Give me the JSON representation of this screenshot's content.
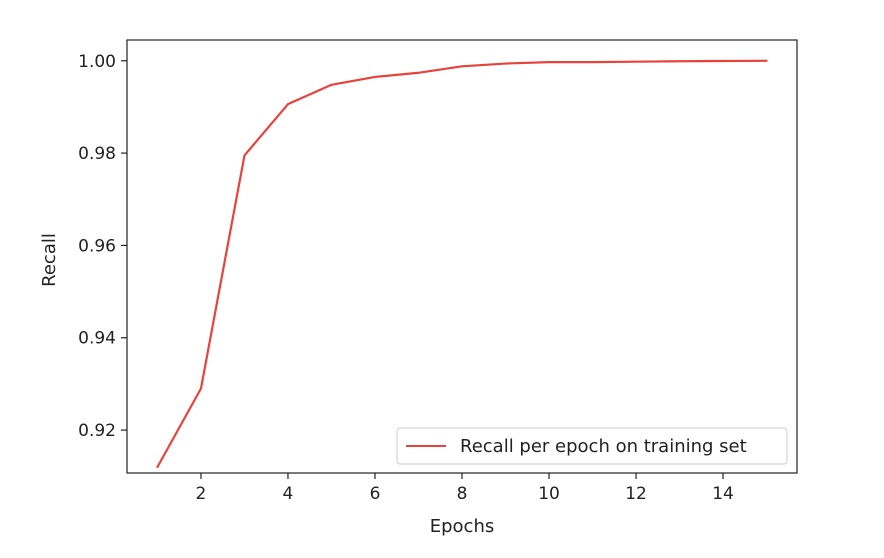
{
  "chart_data": {
    "type": "line",
    "x": [
      1,
      2,
      3,
      4,
      5,
      6,
      7,
      8,
      9,
      10,
      11,
      12,
      13,
      14,
      15
    ],
    "series": [
      {
        "name": "Recall per epoch on training set",
        "color": "#e8423b",
        "values": [
          0.912,
          0.929,
          0.9795,
          0.9906,
          0.9948,
          0.9965,
          0.9974,
          0.9988,
          0.9994,
          0.9997,
          0.9997,
          0.9998,
          0.9999,
          0.99995,
          1.0
        ]
      }
    ],
    "xlabel": "Epochs",
    "ylabel": "Recall",
    "xlim": [
      0.3,
      15.7
    ],
    "ylim": [
      0.9107,
      1.0045
    ],
    "xticks": [
      2,
      4,
      6,
      8,
      10,
      12,
      14
    ],
    "yticks": [
      0.92,
      0.94,
      0.96,
      0.98,
      1.0
    ],
    "ytick_labels": [
      "0.92",
      "0.94",
      "0.96",
      "0.98",
      "1.00"
    ],
    "grid": false,
    "legend_position": "lower-right"
  }
}
